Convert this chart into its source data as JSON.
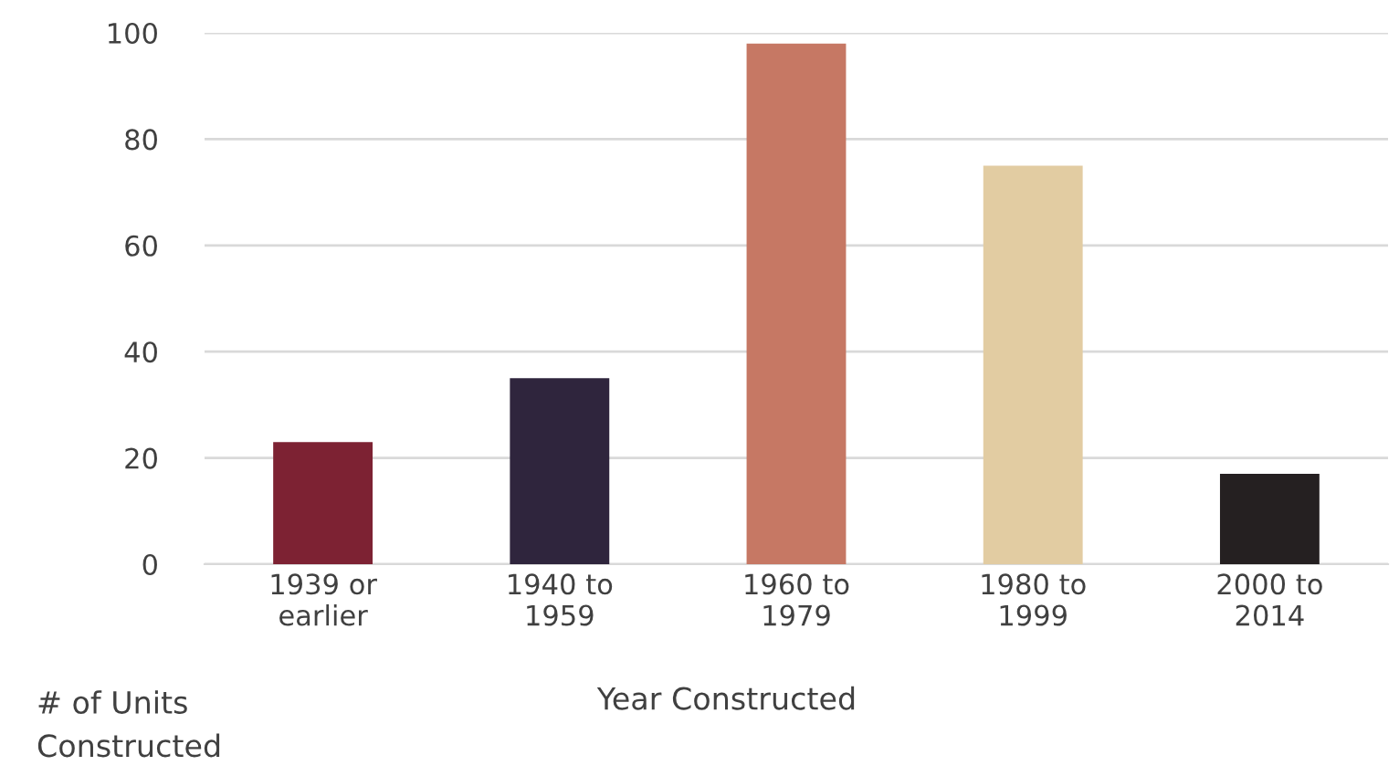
{
  "chart_data": {
    "type": "bar",
    "xlabel": "Year Constructed",
    "categories": [
      "1939 or\nearlier",
      "1940 to\n1959",
      "1960 to\n1979",
      "1980 to\n1999",
      "2000 to\n2014"
    ],
    "values": [
      23,
      35,
      98,
      75,
      17
    ],
    "colors": [
      "#7d2233",
      "#2f253d",
      "#c67864",
      "#e2cca2",
      "#252021"
    ],
    "ylim": [
      0,
      100
    ],
    "yticks": [
      0,
      20,
      40,
      60,
      80,
      100
    ],
    "grid": "y",
    "annotations": [
      "# of Units\nConstructed"
    ]
  }
}
